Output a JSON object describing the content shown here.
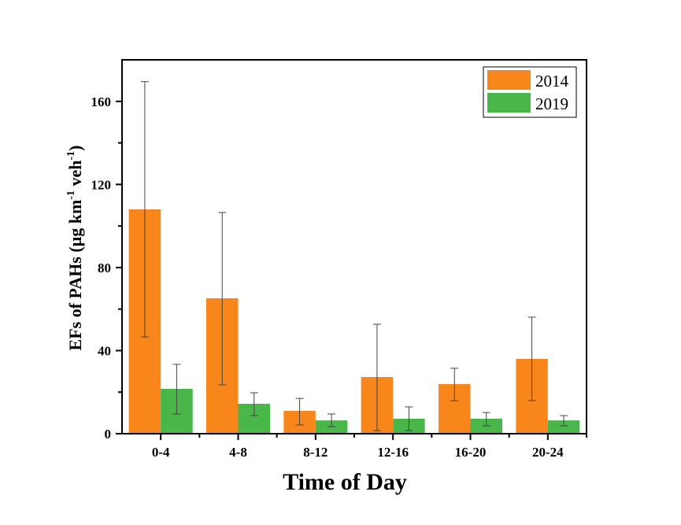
{
  "chart_data": {
    "type": "bar",
    "categories": [
      "0-4",
      "4-8",
      "8-12",
      "12-16",
      "16-20",
      "20-24"
    ],
    "series": [
      {
        "name": "2014",
        "color": "#f8861a",
        "values": [
          108,
          65.2,
          11,
          27.3,
          23.9,
          36
        ],
        "error_upper": [
          169.5,
          106.5,
          17,
          52.7,
          31.5,
          56.1
        ],
        "error_lower": [
          46.6,
          23.5,
          4.2,
          1.5,
          15.9,
          15.9
        ]
      },
      {
        "name": "2019",
        "color": "#49b649",
        "values": [
          21.6,
          14.4,
          6.4,
          7.2,
          7.2,
          6.4
        ],
        "error_upper": [
          33.4,
          19.7,
          9.5,
          12.9,
          10.2,
          8.7
        ],
        "error_lower": [
          9.5,
          8.7,
          3.4,
          1.5,
          3.8,
          3.8
        ]
      }
    ],
    "xlabel": "Time of Day",
    "ylabel": "EFs of PAHs (μg km",
    "ylabel_sup1": "-1",
    "ylabel_mid": " veh",
    "ylabel_sup2": "-1",
    "ylabel_end": ")",
    "ylim": [
      0,
      180
    ],
    "yticks": [
      0,
      40,
      80,
      120,
      160
    ],
    "grid": false,
    "legend": "top-right"
  }
}
